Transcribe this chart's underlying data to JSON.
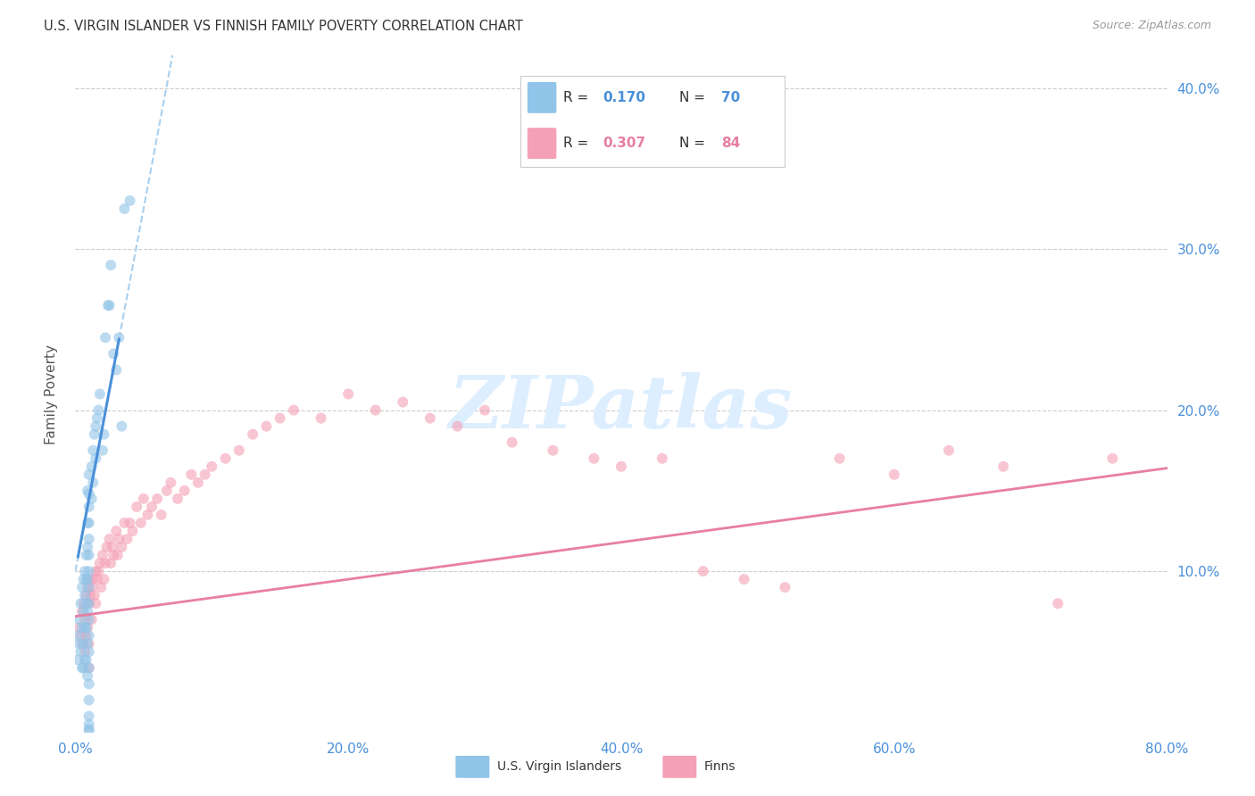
{
  "title": "U.S. VIRGIN ISLANDER VS FINNISH FAMILY POVERTY CORRELATION CHART",
  "source": "Source: ZipAtlas.com",
  "ylabel": "Family Poverty",
  "xlim": [
    0,
    0.8
  ],
  "ylim": [
    0,
    0.42
  ],
  "yticks": [
    0.0,
    0.1,
    0.2,
    0.3,
    0.4
  ],
  "xticks": [
    0.0,
    0.2,
    0.4,
    0.6,
    0.8
  ],
  "ytick_labels": [
    "",
    "10.0%",
    "20.0%",
    "30.0%",
    "40.0%"
  ],
  "xtick_labels": [
    "0.0%",
    "20.0%",
    "40.0%",
    "60.0%",
    "80.0%"
  ],
  "blue_scatter_x": [
    0.002,
    0.002,
    0.003,
    0.003,
    0.004,
    0.004,
    0.005,
    0.005,
    0.005,
    0.006,
    0.006,
    0.006,
    0.006,
    0.007,
    0.007,
    0.007,
    0.007,
    0.008,
    0.008,
    0.008,
    0.008,
    0.008,
    0.009,
    0.009,
    0.009,
    0.009,
    0.009,
    0.009,
    0.009,
    0.01,
    0.01,
    0.01,
    0.01,
    0.01,
    0.01,
    0.01,
    0.01,
    0.01,
    0.01,
    0.01,
    0.01,
    0.01,
    0.01,
    0.01,
    0.01,
    0.01,
    0.01,
    0.01,
    0.012,
    0.012,
    0.013,
    0.013,
    0.014,
    0.015,
    0.015,
    0.016,
    0.017,
    0.018,
    0.02,
    0.021,
    0.022,
    0.024,
    0.025,
    0.026,
    0.028,
    0.03,
    0.032,
    0.034,
    0.036,
    0.04
  ],
  "blue_scatter_y": [
    0.06,
    0.045,
    0.07,
    0.055,
    0.08,
    0.05,
    0.09,
    0.065,
    0.04,
    0.095,
    0.075,
    0.055,
    0.04,
    0.1,
    0.085,
    0.065,
    0.045,
    0.11,
    0.095,
    0.08,
    0.065,
    0.045,
    0.15,
    0.13,
    0.115,
    0.095,
    0.075,
    0.055,
    0.035,
    0.16,
    0.148,
    0.14,
    0.13,
    0.12,
    0.11,
    0.1,
    0.09,
    0.08,
    0.07,
    0.06,
    0.05,
    0.04,
    0.03,
    0.02,
    0.01,
    0.005,
    0.002,
    0.001,
    0.165,
    0.145,
    0.175,
    0.155,
    0.185,
    0.19,
    0.17,
    0.195,
    0.2,
    0.21,
    0.175,
    0.185,
    0.245,
    0.265,
    0.265,
    0.29,
    0.235,
    0.225,
    0.245,
    0.19,
    0.325,
    0.33
  ],
  "pink_scatter_x": [
    0.003,
    0.004,
    0.005,
    0.005,
    0.006,
    0.007,
    0.007,
    0.008,
    0.008,
    0.009,
    0.009,
    0.01,
    0.01,
    0.01,
    0.01,
    0.011,
    0.012,
    0.012,
    0.013,
    0.014,
    0.015,
    0.015,
    0.016,
    0.017,
    0.018,
    0.019,
    0.02,
    0.021,
    0.022,
    0.023,
    0.025,
    0.026,
    0.027,
    0.028,
    0.03,
    0.031,
    0.032,
    0.034,
    0.036,
    0.038,
    0.04,
    0.042,
    0.045,
    0.048,
    0.05,
    0.053,
    0.056,
    0.06,
    0.063,
    0.067,
    0.07,
    0.075,
    0.08,
    0.085,
    0.09,
    0.095,
    0.1,
    0.11,
    0.12,
    0.13,
    0.14,
    0.15,
    0.16,
    0.18,
    0.2,
    0.22,
    0.24,
    0.26,
    0.28,
    0.3,
    0.32,
    0.35,
    0.38,
    0.4,
    0.43,
    0.46,
    0.49,
    0.52,
    0.56,
    0.6,
    0.64,
    0.68,
    0.72,
    0.76
  ],
  "pink_scatter_y": [
    0.065,
    0.06,
    0.075,
    0.055,
    0.08,
    0.07,
    0.05,
    0.085,
    0.06,
    0.09,
    0.065,
    0.095,
    0.08,
    0.055,
    0.04,
    0.085,
    0.09,
    0.07,
    0.095,
    0.085,
    0.1,
    0.08,
    0.095,
    0.1,
    0.105,
    0.09,
    0.11,
    0.095,
    0.105,
    0.115,
    0.12,
    0.105,
    0.115,
    0.11,
    0.125,
    0.11,
    0.12,
    0.115,
    0.13,
    0.12,
    0.13,
    0.125,
    0.14,
    0.13,
    0.145,
    0.135,
    0.14,
    0.145,
    0.135,
    0.15,
    0.155,
    0.145,
    0.15,
    0.16,
    0.155,
    0.16,
    0.165,
    0.17,
    0.175,
    0.185,
    0.19,
    0.195,
    0.2,
    0.195,
    0.21,
    0.2,
    0.205,
    0.195,
    0.19,
    0.2,
    0.18,
    0.175,
    0.17,
    0.165,
    0.17,
    0.1,
    0.095,
    0.09,
    0.17,
    0.16,
    0.175,
    0.165,
    0.08,
    0.17
  ],
  "blue_line_color": "#4a90d9",
  "pink_line_color": "#e87fa0",
  "blue_scatter_color": "#90c4e8",
  "pink_scatter_color": "#f4a0b5",
  "blue_dash_color": "#a8d0ef",
  "scatter_alpha": 0.6,
  "scatter_size": 75,
  "background_color": "#ffffff",
  "grid_color": "#cccccc",
  "title_color": "#333333",
  "axis_label_color": "#555555",
  "tick_label_color": "#4a90d9",
  "watermark_text": "ZIPatlas",
  "watermark_color": "#ddeeff",
  "watermark_fontsize": 60,
  "blue_reg_slope": 4.5,
  "blue_reg_intercept": 0.1,
  "pink_reg_slope": 0.115,
  "pink_reg_intercept": 0.072
}
